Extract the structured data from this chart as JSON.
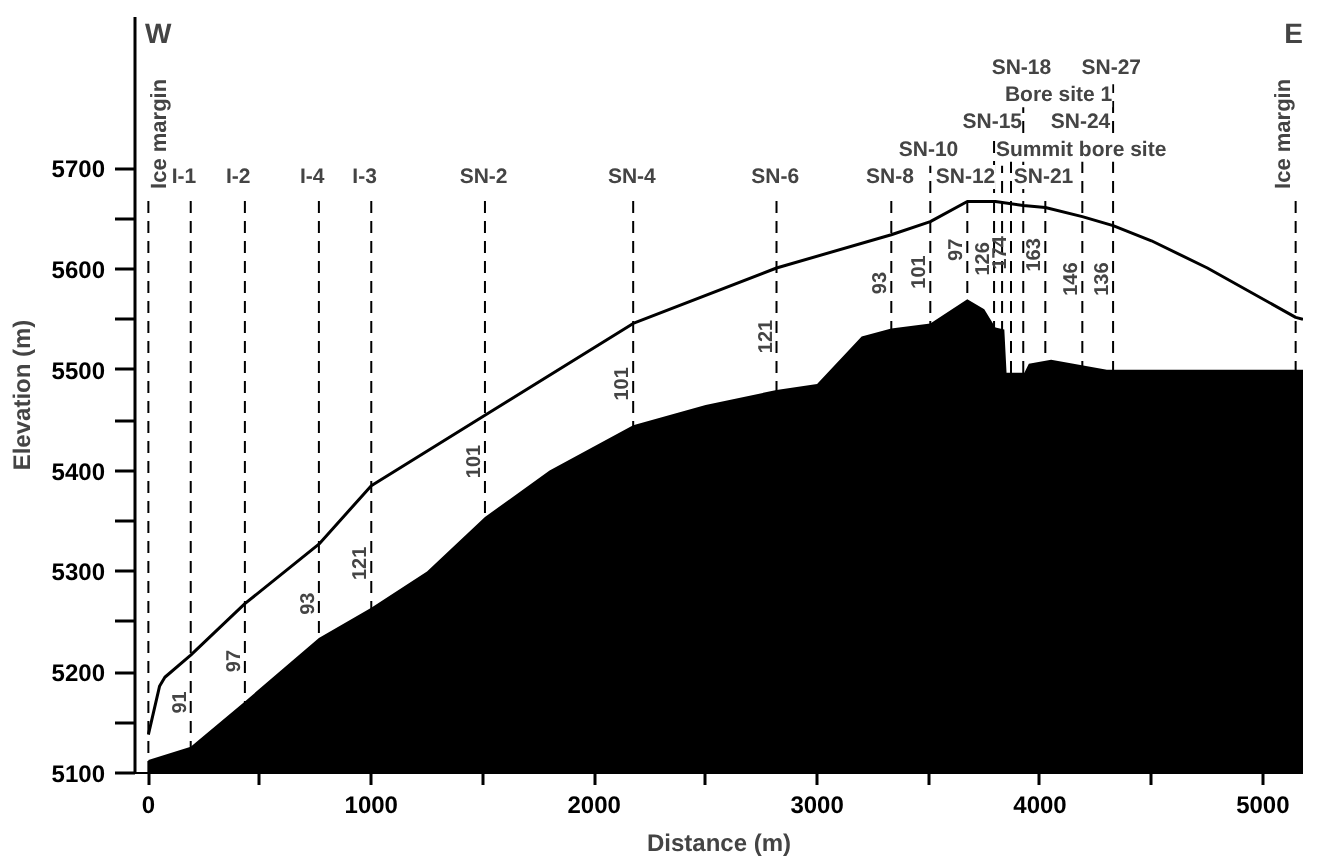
{
  "chart_data": {
    "type": "line",
    "xlabel": "Distance (m)",
    "ylabel": "Elevation (m)",
    "xlim": [
      -60,
      5180
    ],
    "ylim": [
      5100,
      5850
    ],
    "xticks": [
      0,
      {
        "value": 500,
        "label": null
      },
      1000,
      {
        "value": 1500,
        "label": null
      },
      2000,
      {
        "value": 2500,
        "label": null
      },
      3000,
      {
        "value": 3500,
        "label": null
      },
      4000,
      {
        "value": 4500,
        "label": null
      },
      5000
    ],
    "yticks": [
      5100,
      {
        "value": 5150,
        "label": null
      },
      5200,
      {
        "value": 5250,
        "label": null
      },
      5300,
      {
        "value": 5350,
        "label": null
      },
      5400,
      {
        "value": 5450,
        "label": null
      },
      5500,
      {
        "value": 5550,
        "label": null
      },
      5600,
      {
        "value": 5650,
        "label": null
      },
      5700
    ],
    "series": [
      {
        "type": "area",
        "color": "#000000",
        "x": [
          0,
          190,
          433,
          765,
          1000,
          1250,
          1510,
          1800,
          2175,
          2500,
          2818,
          3000,
          3200,
          3333,
          3508,
          3674,
          3750,
          3800,
          3840,
          3850,
          3930,
          3950,
          4050,
          4300,
          5147,
          5180
        ],
        "values": [
          5113,
          5126,
          5171,
          5234,
          5264,
          5300,
          5354,
          5400,
          5445,
          5465,
          5480,
          5486,
          5533,
          5541,
          5546,
          5570,
          5560,
          5542,
          5540,
          5497,
          5497,
          5506,
          5510,
          5500,
          5500,
          5500
        ]
      },
      {
        "color": "#000000",
        "x": [
          0,
          50,
          74,
          190,
          433,
          765,
          1000,
          1510,
          2175,
          2818,
          3333,
          3508,
          3674,
          3800,
          3925,
          4024,
          4190,
          4328,
          4500,
          4751,
          5147,
          5180
        ],
        "values": [
          5138,
          5186,
          5195,
          5217,
          5268,
          5327,
          5385,
          5455,
          5546,
          5601,
          5634,
          5647,
          5667,
          5667,
          5663,
          5661,
          5652,
          5643,
          5628,
          5601,
          5552,
          5550
        ]
      }
    ],
    "ref_lines": [
      {
        "axis": "x",
        "value": 0,
        "label": "Ice margin",
        "line_style": "dashed"
      },
      {
        "axis": "x",
        "value": 190,
        "label": "I-1",
        "line_style": "dashed"
      },
      {
        "axis": "x",
        "value": 433,
        "label": "I-2",
        "line_style": "dashed"
      },
      {
        "axis": "x",
        "value": 765,
        "label": "I-4",
        "line_style": "dashed"
      },
      {
        "axis": "x",
        "value": 1000,
        "label": "I-3",
        "line_style": "dashed"
      },
      {
        "axis": "x",
        "value": 1510,
        "label": "SN-2",
        "line_style": "dashed"
      },
      {
        "axis": "x",
        "value": 2175,
        "label": "SN-4",
        "line_style": "dashed"
      },
      {
        "axis": "x",
        "value": 2818,
        "label": "SN-6",
        "line_style": "dashed"
      },
      {
        "axis": "x",
        "value": 3333,
        "label": "SN-8",
        "line_style": "dashed"
      },
      {
        "axis": "x",
        "value": 3508,
        "label": "SN-10",
        "line_style": "dashed"
      },
      {
        "axis": "x",
        "value": 3674,
        "label": "SN-12",
        "line_style": "dashed"
      },
      {
        "axis": "x",
        "value": 3794,
        "label": "SN-15",
        "line_style": "dashed"
      },
      {
        "axis": "x",
        "value": 3830,
        "label": "Summit bore site",
        "line_style": "dashed"
      },
      {
        "axis": "x",
        "value": 3870,
        "label": "Bore site 1",
        "line_style": "dashed"
      },
      {
        "axis": "x",
        "value": 3925,
        "label": "SN-18",
        "line_style": "dashed"
      },
      {
        "axis": "x",
        "value": 4024,
        "label": "SN-21",
        "line_style": "dashed"
      },
      {
        "axis": "x",
        "value": 4190,
        "label": "SN-24",
        "line_style": "dashed"
      },
      {
        "axis": "x",
        "value": 4328,
        "label": "SN-27",
        "line_style": "dashed"
      },
      {
        "axis": "x",
        "value": 5147,
        "label": "Ice margin",
        "line_style": "dashed"
      }
    ],
    "annotations": [
      "W",
      "E",
      {
        "text": "91",
        "x": 190,
        "y": 5170
      },
      {
        "text": "97",
        "x": 433,
        "y": 5211
      },
      {
        "text": "93",
        "x": 765,
        "y": 5268
      },
      {
        "text": "121",
        "x": 1000,
        "y": 5308
      },
      {
        "text": "101",
        "x": 1510,
        "y": 5409
      },
      {
        "text": "101",
        "x": 2175,
        "y": 5486
      },
      {
        "text": "121",
        "x": 2818,
        "y": 5533
      },
      {
        "text": "93",
        "x": 3333,
        "y": 5586
      },
      {
        "text": "101",
        "x": 3508,
        "y": 5597
      },
      {
        "text": "97",
        "x": 3674,
        "y": 5619
      },
      {
        "text": "126",
        "x": 3794,
        "y": 5610
      },
      {
        "text": "174",
        "x": 3870,
        "y": 5616
      },
      {
        "text": "163",
        "x": 4024,
        "y": 5614
      },
      {
        "text": "146",
        "x": 4190,
        "y": 5590
      },
      {
        "text": "136",
        "x": 4328,
        "y": 5590
      }
    ]
  }
}
